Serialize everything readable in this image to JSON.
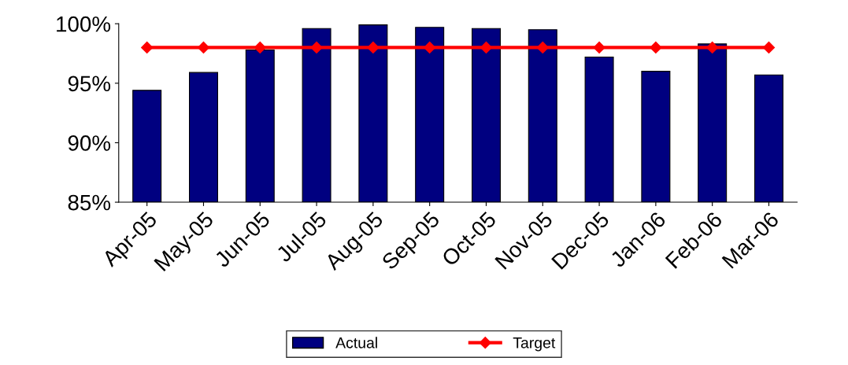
{
  "chart_data": {
    "type": "bar",
    "categories": [
      "Apr-05",
      "May-05",
      "Jun-05",
      "Jul-05",
      "Aug-05",
      "Sep-05",
      "Oct-05",
      "Nov-05",
      "Dec-05",
      "Jan-06",
      "Feb-06",
      "Mar-06"
    ],
    "series": [
      {
        "name": "Actual",
        "color": "#000080",
        "values": [
          94.4,
          95.9,
          97.8,
          99.6,
          99.9,
          99.7,
          99.6,
          99.5,
          97.2,
          96.0,
          98.3,
          95.7
        ]
      },
      {
        "name": "Target",
        "color": "#ff0000",
        "type": "line",
        "marker": "diamond",
        "values": [
          98,
          98,
          98,
          98,
          98,
          98,
          98,
          98,
          98,
          98,
          98,
          98
        ]
      }
    ],
    "ylim": [
      85,
      100
    ],
    "yticks": [
      {
        "value": 85,
        "label": "85%"
      },
      {
        "value": 90,
        "label": "90%"
      },
      {
        "value": 95,
        "label": "95%"
      },
      {
        "value": 100,
        "label": "100%"
      }
    ],
    "grid": false,
    "legend": "bottom"
  }
}
